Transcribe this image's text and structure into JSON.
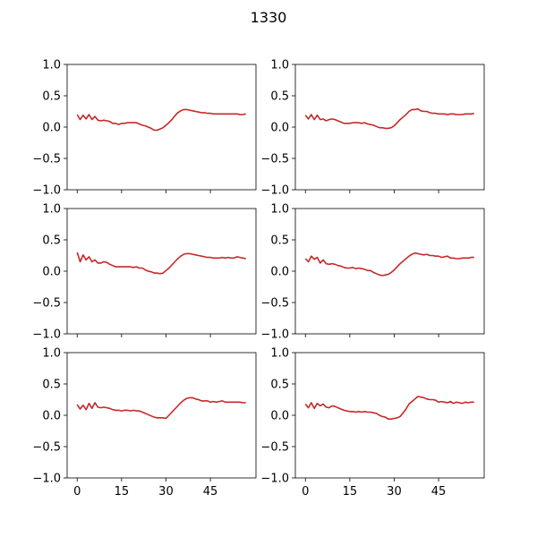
{
  "figure": {
    "title": "1330"
  },
  "chart_data": [
    {
      "type": "line",
      "panel": "top-left",
      "xlim": [
        -3.4,
        60.4
      ],
      "ylim": [
        -1.0,
        1.0
      ],
      "xticks": [
        0,
        15,
        30,
        45
      ],
      "yticks": [
        -1.0,
        -0.5,
        0.0,
        0.5,
        1.0
      ],
      "show_x_tick_labels": false,
      "color": "#c62828",
      "x": [
        0,
        1,
        2,
        3,
        4,
        5,
        6,
        7,
        8,
        9,
        10,
        11,
        12,
        13,
        14,
        15,
        16,
        17,
        18,
        19,
        20,
        21,
        22,
        23,
        24,
        25,
        26,
        27,
        28,
        29,
        30,
        31,
        32,
        33,
        34,
        35,
        36,
        37,
        38,
        39,
        40,
        41,
        42,
        43,
        44,
        45,
        46,
        47,
        48,
        49,
        50,
        51,
        52,
        53,
        54,
        55,
        56,
        57
      ],
      "values": [
        0.2,
        0.12,
        0.19,
        0.13,
        0.2,
        0.12,
        0.17,
        0.11,
        0.1,
        0.11,
        0.1,
        0.09,
        0.06,
        0.06,
        0.04,
        0.06,
        0.06,
        0.07,
        0.07,
        0.07,
        0.07,
        0.05,
        0.03,
        0.02,
        0.0,
        -0.02,
        -0.05,
        -0.05,
        -0.03,
        -0.01,
        0.03,
        0.07,
        0.12,
        0.18,
        0.23,
        0.26,
        0.28,
        0.28,
        0.27,
        0.26,
        0.25,
        0.24,
        0.23,
        0.23,
        0.22,
        0.22,
        0.21,
        0.21,
        0.21,
        0.21,
        0.21,
        0.21,
        0.21,
        0.21,
        0.21,
        0.2,
        0.2,
        0.21
      ]
    },
    {
      "type": "line",
      "panel": "top-right",
      "xlim": [
        -3.4,
        60.4
      ],
      "ylim": [
        -1.0,
        1.0
      ],
      "xticks": [
        0,
        15,
        30,
        45
      ],
      "yticks": [
        -1.0,
        -0.5,
        0.0,
        0.5,
        1.0
      ],
      "show_x_tick_labels": false,
      "color": "#c62828",
      "x": [
        0,
        1,
        2,
        3,
        4,
        5,
        6,
        7,
        8,
        9,
        10,
        11,
        12,
        13,
        14,
        15,
        16,
        17,
        18,
        19,
        20,
        21,
        22,
        23,
        24,
        25,
        26,
        27,
        28,
        29,
        30,
        31,
        32,
        33,
        34,
        35,
        36,
        37,
        38,
        39,
        40,
        41,
        42,
        43,
        44,
        45,
        46,
        47,
        48,
        49,
        50,
        51,
        52,
        53,
        54,
        55,
        56,
        57
      ],
      "values": [
        0.19,
        0.13,
        0.2,
        0.12,
        0.19,
        0.12,
        0.13,
        0.1,
        0.12,
        0.13,
        0.12,
        0.1,
        0.08,
        0.06,
        0.06,
        0.06,
        0.07,
        0.07,
        0.07,
        0.06,
        0.07,
        0.05,
        0.04,
        0.03,
        0.01,
        -0.01,
        -0.01,
        -0.02,
        -0.02,
        -0.01,
        0.02,
        0.07,
        0.12,
        0.16,
        0.2,
        0.25,
        0.28,
        0.28,
        0.29,
        0.26,
        0.25,
        0.25,
        0.23,
        0.22,
        0.22,
        0.21,
        0.21,
        0.21,
        0.2,
        0.21,
        0.21,
        0.2,
        0.2,
        0.2,
        0.21,
        0.21,
        0.21,
        0.22
      ]
    },
    {
      "type": "line",
      "panel": "middle-left",
      "xlim": [
        -3.4,
        60.4
      ],
      "ylim": [
        -1.0,
        1.0
      ],
      "xticks": [
        0,
        15,
        30,
        45
      ],
      "yticks": [
        -1.0,
        -0.5,
        0.0,
        0.5,
        1.0
      ],
      "show_x_tick_labels": false,
      "color": "#c62828",
      "x": [
        0,
        1,
        2,
        3,
        4,
        5,
        6,
        7,
        8,
        9,
        10,
        11,
        12,
        13,
        14,
        15,
        16,
        17,
        18,
        19,
        20,
        21,
        22,
        23,
        24,
        25,
        26,
        27,
        28,
        29,
        30,
        31,
        32,
        33,
        34,
        35,
        36,
        37,
        38,
        39,
        40,
        41,
        42,
        43,
        44,
        45,
        46,
        47,
        48,
        49,
        50,
        51,
        52,
        53,
        54,
        55,
        56,
        57
      ],
      "values": [
        0.3,
        0.15,
        0.26,
        0.18,
        0.23,
        0.15,
        0.18,
        0.13,
        0.13,
        0.15,
        0.14,
        0.11,
        0.09,
        0.07,
        0.07,
        0.07,
        0.07,
        0.07,
        0.07,
        0.06,
        0.07,
        0.05,
        0.05,
        0.02,
        0.0,
        -0.01,
        -0.03,
        -0.03,
        -0.04,
        -0.03,
        0.01,
        0.05,
        0.1,
        0.15,
        0.2,
        0.24,
        0.27,
        0.28,
        0.28,
        0.27,
        0.26,
        0.25,
        0.24,
        0.23,
        0.22,
        0.22,
        0.21,
        0.21,
        0.21,
        0.22,
        0.21,
        0.22,
        0.21,
        0.21,
        0.23,
        0.22,
        0.21,
        0.2
      ]
    },
    {
      "type": "line",
      "panel": "middle-right",
      "xlim": [
        -3.4,
        60.4
      ],
      "ylim": [
        -1.0,
        1.0
      ],
      "xticks": [
        0,
        15,
        30,
        45
      ],
      "yticks": [
        -1.0,
        -0.5,
        0.0,
        0.5,
        1.0
      ],
      "show_x_tick_labels": false,
      "color": "#c62828",
      "x": [
        0,
        1,
        2,
        3,
        4,
        5,
        6,
        7,
        8,
        9,
        10,
        11,
        12,
        13,
        14,
        15,
        16,
        17,
        18,
        19,
        20,
        21,
        22,
        23,
        24,
        25,
        26,
        27,
        28,
        29,
        30,
        31,
        32,
        33,
        34,
        35,
        36,
        37,
        38,
        39,
        40,
        41,
        42,
        43,
        44,
        45,
        46,
        47,
        48,
        49,
        50,
        51,
        52,
        53,
        54,
        55,
        56,
        57
      ],
      "values": [
        0.2,
        0.15,
        0.24,
        0.19,
        0.22,
        0.13,
        0.18,
        0.12,
        0.11,
        0.12,
        0.11,
        0.09,
        0.08,
        0.06,
        0.05,
        0.05,
        0.06,
        0.04,
        0.05,
        0.04,
        0.03,
        0.01,
        0.01,
        -0.02,
        -0.04,
        -0.06,
        -0.07,
        -0.06,
        -0.05,
        -0.02,
        0.02,
        0.07,
        0.12,
        0.16,
        0.2,
        0.24,
        0.27,
        0.29,
        0.28,
        0.27,
        0.26,
        0.27,
        0.25,
        0.25,
        0.24,
        0.24,
        0.22,
        0.23,
        0.24,
        0.21,
        0.21,
        0.2,
        0.2,
        0.21,
        0.21,
        0.21,
        0.22,
        0.22
      ]
    },
    {
      "type": "line",
      "panel": "bottom-left",
      "xlim": [
        -3.4,
        60.4
      ],
      "ylim": [
        -1.0,
        1.0
      ],
      "xticks": [
        0,
        15,
        30,
        45
      ],
      "yticks": [
        -1.0,
        -0.5,
        0.0,
        0.5,
        1.0
      ],
      "show_x_tick_labels": true,
      "color": "#c62828",
      "x": [
        0,
        1,
        2,
        3,
        4,
        5,
        6,
        7,
        8,
        9,
        10,
        11,
        12,
        13,
        14,
        15,
        16,
        17,
        18,
        19,
        20,
        21,
        22,
        23,
        24,
        25,
        26,
        27,
        28,
        29,
        30,
        31,
        32,
        33,
        34,
        35,
        36,
        37,
        38,
        39,
        40,
        41,
        42,
        43,
        44,
        45,
        46,
        47,
        48,
        49,
        50,
        51,
        52,
        53,
        54,
        55,
        56,
        57
      ],
      "values": [
        0.17,
        0.1,
        0.16,
        0.09,
        0.19,
        0.11,
        0.2,
        0.13,
        0.12,
        0.13,
        0.12,
        0.11,
        0.09,
        0.08,
        0.08,
        0.07,
        0.08,
        0.08,
        0.07,
        0.08,
        0.07,
        0.07,
        0.05,
        0.03,
        0.01,
        -0.01,
        -0.03,
        -0.04,
        -0.04,
        -0.04,
        -0.05,
        0.0,
        0.05,
        0.1,
        0.15,
        0.2,
        0.24,
        0.27,
        0.28,
        0.28,
        0.26,
        0.25,
        0.23,
        0.23,
        0.23,
        0.21,
        0.22,
        0.21,
        0.22,
        0.23,
        0.21,
        0.21,
        0.21,
        0.21,
        0.21,
        0.21,
        0.2,
        0.2
      ]
    },
    {
      "type": "line",
      "panel": "bottom-right",
      "xlim": [
        -3.4,
        60.4
      ],
      "ylim": [
        -1.0,
        1.0
      ],
      "xticks": [
        0,
        15,
        30,
        45
      ],
      "yticks": [
        -1.0,
        -0.5,
        0.0,
        0.5,
        1.0
      ],
      "show_x_tick_labels": true,
      "color": "#c62828",
      "x": [
        0,
        1,
        2,
        3,
        4,
        5,
        6,
        7,
        8,
        9,
        10,
        11,
        12,
        13,
        14,
        15,
        16,
        17,
        18,
        19,
        20,
        21,
        22,
        23,
        24,
        25,
        26,
        27,
        28,
        29,
        30,
        31,
        32,
        33,
        34,
        35,
        36,
        37,
        38,
        39,
        40,
        41,
        42,
        43,
        44,
        45,
        46,
        47,
        48,
        49,
        50,
        51,
        52,
        53,
        54,
        55,
        56,
        57
      ],
      "values": [
        0.18,
        0.12,
        0.2,
        0.11,
        0.19,
        0.15,
        0.18,
        0.13,
        0.12,
        0.15,
        0.14,
        0.12,
        0.1,
        0.08,
        0.07,
        0.06,
        0.06,
        0.05,
        0.06,
        0.05,
        0.06,
        0.05,
        0.05,
        0.04,
        0.03,
        0.0,
        -0.02,
        -0.03,
        -0.06,
        -0.06,
        -0.05,
        -0.04,
        -0.02,
        0.04,
        0.1,
        0.18,
        0.22,
        0.26,
        0.3,
        0.29,
        0.28,
        0.26,
        0.25,
        0.25,
        0.24,
        0.21,
        0.22,
        0.21,
        0.2,
        0.22,
        0.19,
        0.21,
        0.2,
        0.19,
        0.21,
        0.2,
        0.21,
        0.21
      ]
    }
  ]
}
